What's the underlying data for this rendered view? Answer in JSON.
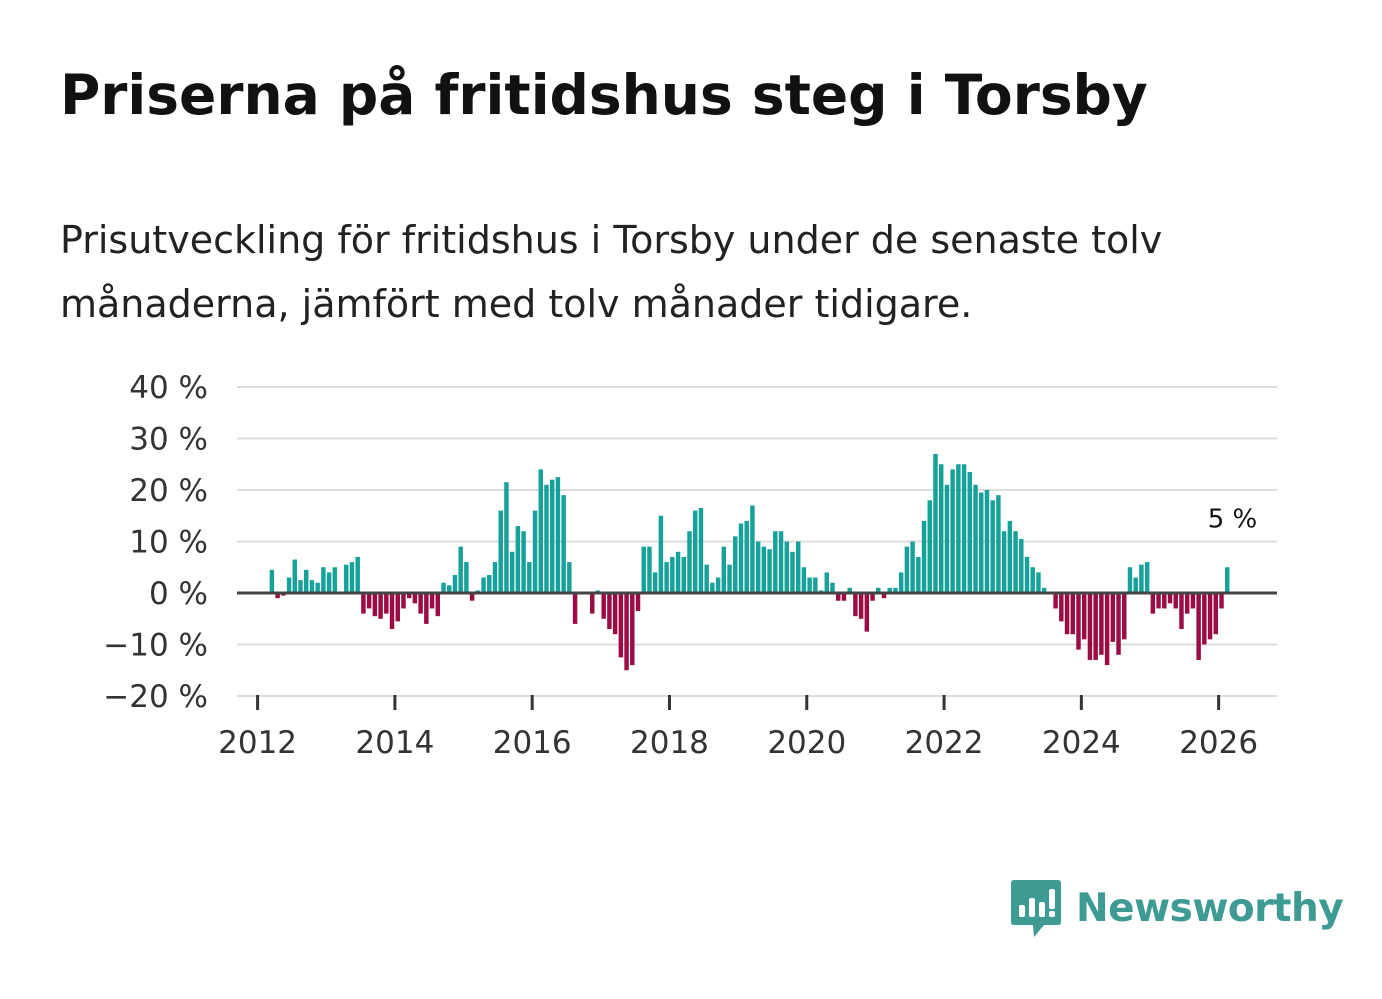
{
  "title": "Priserna på fritidshus steg i Torsby",
  "subtitle": "Prisutveckling för fritidshus i Torsby under de senaste tolv månaderna, jämfört med tolv månader tidigare.",
  "colors": {
    "positive": "#16a29a",
    "negative": "#9b0c45",
    "grid": "#dddddd",
    "zero_line": "#444444",
    "brand": "#3d9b93"
  },
  "brand": {
    "name": "Newsworthy",
    "icon": "bar-chart-speech-bubble-icon"
  },
  "chart_data": {
    "type": "bar",
    "title": "Priserna på fritidshus steg i Torsby",
    "xlabel": "",
    "ylabel": "",
    "unit": "%",
    "ylim": [
      -20,
      40
    ],
    "yticks": [
      40,
      30,
      20,
      10,
      0,
      -10,
      -20
    ],
    "ytick_labels": [
      "40 %",
      "30 %",
      "20 %",
      "10 %",
      "0 %",
      "−10 %",
      "−20 %"
    ],
    "xlim": [
      2011.7,
      2026.85
    ],
    "xticks": [
      2012,
      2014,
      2016,
      2018,
      2020,
      2022,
      2024,
      2026
    ],
    "xtick_labels": [
      "2012",
      "2014",
      "2016",
      "2018",
      "2020",
      "2022",
      "2024",
      "2026"
    ],
    "start": "2012-01",
    "frequency": "monthly",
    "grid": true,
    "annotation": {
      "label": "5 %",
      "index": 169
    },
    "values": [
      0,
      0,
      4.5,
      -1,
      -0.5,
      3,
      6.5,
      2.5,
      4.5,
      2.5,
      2,
      5,
      4,
      5,
      0,
      5.5,
      6,
      7,
      -4,
      -3,
      -4.5,
      -5,
      -4,
      -7,
      -5.5,
      -3,
      -1,
      -2,
      -4,
      -6,
      -3,
      -4.5,
      2,
      1.5,
      3.5,
      9,
      6,
      -1.5,
      0.5,
      3,
      3.5,
      6,
      16,
      21.5,
      8,
      13,
      12,
      6,
      16,
      24,
      21,
      22,
      22.5,
      19,
      6,
      -6,
      0,
      0,
      -4,
      0.5,
      -5,
      -7,
      -8,
      -12.5,
      -15,
      -14,
      -3.5,
      9,
      9,
      4,
      15,
      6,
      7,
      8,
      7,
      12,
      16,
      16.5,
      5.5,
      2,
      3,
      9,
      5.5,
      11,
      13.5,
      14,
      17,
      10,
      9,
      8.5,
      12,
      12,
      10,
      8,
      10,
      5,
      3,
      3,
      0.5,
      4,
      2,
      -1.5,
      -1.5,
      1,
      -4.5,
      -5,
      -7.5,
      -1.5,
      1,
      -1,
      1,
      1,
      4,
      9,
      10,
      7,
      14,
      18,
      27,
      25,
      21,
      24,
      25,
      25,
      23.5,
      21,
      19.5,
      20,
      18,
      19,
      12,
      14,
      12,
      10.5,
      7,
      5,
      4,
      1,
      0,
      -3,
      -5.5,
      -8,
      -8,
      -11,
      -9,
      -13,
      -13,
      -12,
      -14,
      -9.5,
      -12,
      -9,
      5,
      3,
      5.5,
      6,
      -4,
      -3,
      -3,
      -2,
      -3,
      -7,
      -4,
      -3,
      -13,
      -10,
      -9,
      -8,
      -3,
      5
    ]
  }
}
